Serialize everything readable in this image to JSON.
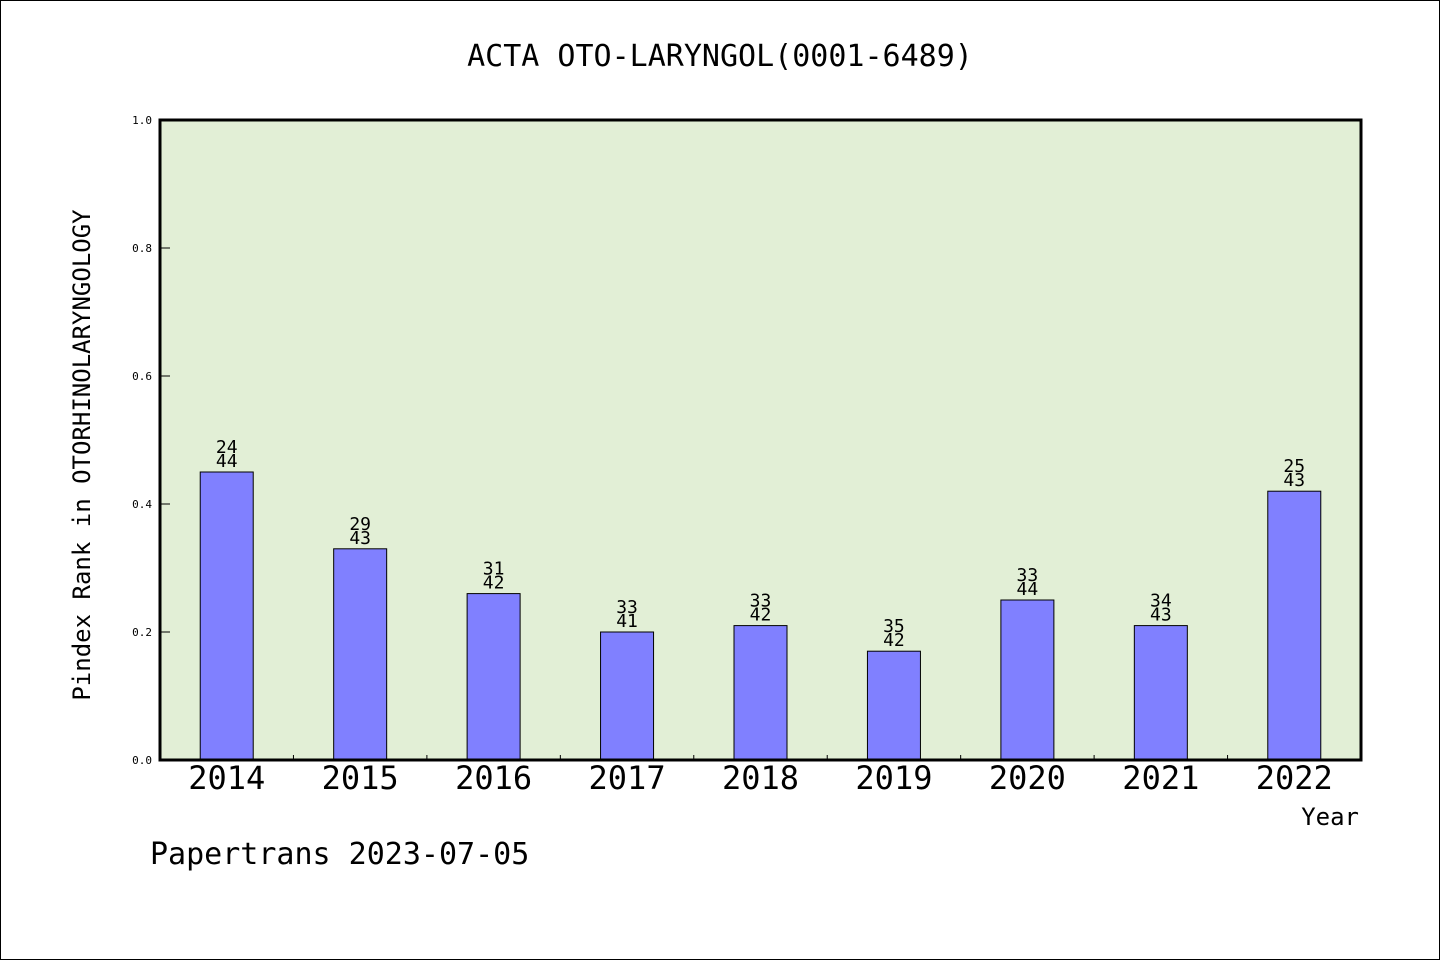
{
  "chart_data": {
    "type": "bar",
    "title": "ACTA OTO-LARYNGOL(0001-6489)",
    "xlabel": "Year",
    "ylabel": "Pindex Rank in OTORHINOLARYNGOLOGY",
    "categories": [
      "2014",
      "2015",
      "2016",
      "2017",
      "2018",
      "2019",
      "2020",
      "2021",
      "2022"
    ],
    "values": [
      0.45,
      0.33,
      0.26,
      0.2,
      0.21,
      0.17,
      0.25,
      0.21,
      0.42
    ],
    "rank_labels": [
      "24",
      "29",
      "31",
      "33",
      "33",
      "35",
      "33",
      "34",
      "25"
    ],
    "total_labels": [
      "44",
      "43",
      "42",
      "41",
      "42",
      "42",
      "44",
      "43",
      "43"
    ],
    "ylim": [
      0,
      1.0
    ],
    "yticks": [
      "0.0",
      "0.2",
      "0.4",
      "0.6",
      "0.8",
      "1.0"
    ],
    "grid": false,
    "plot_background": "#e2efd6",
    "bar_color": "#8080ff"
  },
  "footer": "Papertrans 2023-07-05"
}
